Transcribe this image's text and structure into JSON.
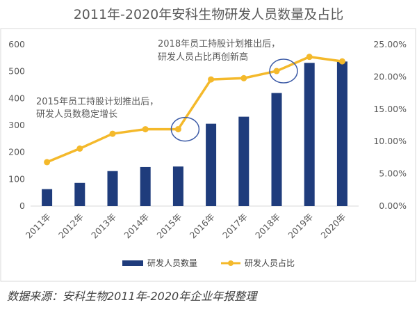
{
  "title": "2011年-2020年安科生物研发人员数量及占比",
  "source": "数据来源：安科生物2011年-2020年企业年报整理",
  "annotations": [
    {
      "lines": [
        "2015年员工持股计划推出后，",
        "研发人员数稳定增长"
      ]
    },
    {
      "lines": [
        "2018年员工持股计划推出后，",
        "研发人员占比再创新高"
      ]
    }
  ],
  "colors": {
    "bar": "#1f3c7c",
    "line": "#f4b92b",
    "circle": "#3b5aa6",
    "frame": "#d9d9d9"
  },
  "chart_data": {
    "type": "bar",
    "categories": [
      "2011年",
      "2012年",
      "2013年",
      "2014年",
      "2015年",
      "2016年",
      "2017年",
      "2018年",
      "2019年",
      "2020年"
    ],
    "series": [
      {
        "name": "研发人员数量",
        "type": "bar",
        "axis": "left",
        "values": [
          63,
          86,
          130,
          145,
          147,
          306,
          332,
          420,
          532,
          537
        ]
      },
      {
        "name": "研发人员占比",
        "type": "line",
        "axis": "right",
        "values": [
          6.8,
          8.9,
          11.2,
          11.9,
          11.9,
          19.6,
          19.8,
          20.9,
          23.1,
          22.4
        ]
      }
    ],
    "y_left": {
      "min": 0,
      "max": 600,
      "ticks": [
        "0",
        "100",
        "200",
        "300",
        "400",
        "500",
        "600"
      ]
    },
    "y_right": {
      "min": 0,
      "max": 25,
      "ticks": [
        "0.00%",
        "5.00%",
        "10.00%",
        "15.00%",
        "20.00%",
        "25.00%"
      ]
    },
    "highlighted_categories": [
      "2015年",
      "2018年"
    ],
    "legend_position": "bottom"
  }
}
